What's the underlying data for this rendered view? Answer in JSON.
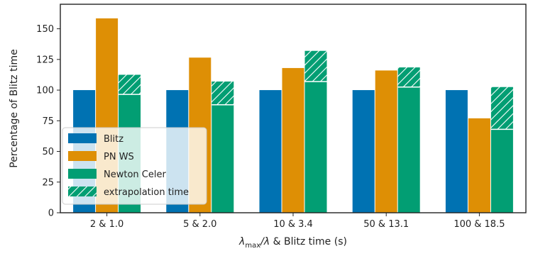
{
  "chart_data": {
    "type": "bar",
    "categories": [
      "2 & 1.0",
      "5 & 2.0",
      "10 & 3.4",
      "50 & 13.1",
      "100 & 18.5"
    ],
    "series": [
      {
        "name": "Blitz",
        "values": [
          100,
          100,
          100,
          100,
          100
        ]
      },
      {
        "name": "PN WS",
        "values": [
          158.5,
          126.5,
          118,
          116,
          77
        ]
      },
      {
        "name": "Newton Celer",
        "values": [
          96.5,
          88,
          107,
          102.5,
          68
        ],
        "extrapolation": [
          16,
          19,
          25,
          16,
          34.5
        ]
      }
    ],
    "legend": [
      "Blitz",
      "PN WS",
      "Newton Celer",
      "extrapolation time"
    ],
    "legend_position": "lower-left",
    "ylabel": "Percentage of Blitz time",
    "xlabel_math": "λ",
    "xlabel_math_sub": "max",
    "xlabel_math_rest": "/λ",
    "xlabel_text": " & Blitz time (s)",
    "yticks": [
      0,
      25,
      50,
      75,
      100,
      125,
      150
    ],
    "ylim": [
      0,
      170
    ],
    "grid": false,
    "colors": {
      "blitz": "#0072b2",
      "pnws": "#de8f05",
      "newton": "#029e73"
    }
  }
}
